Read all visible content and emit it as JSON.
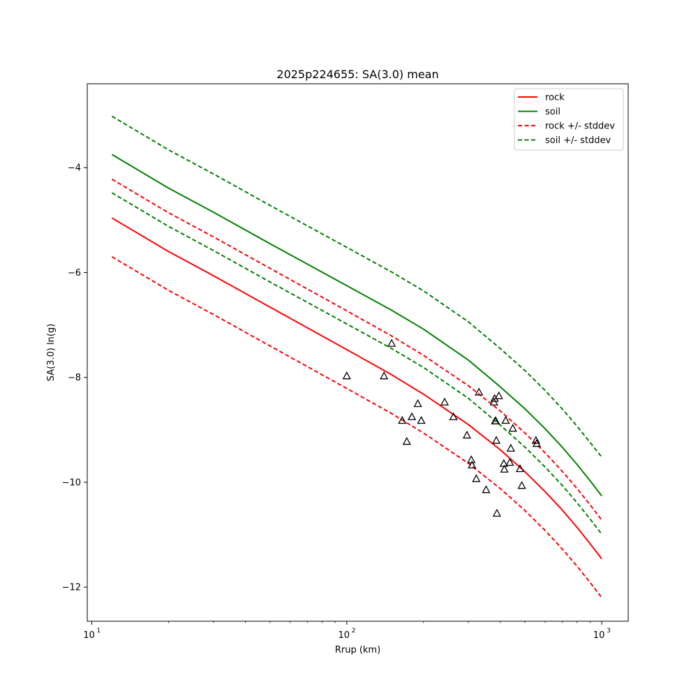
{
  "chart_data": {
    "type": "line",
    "title": "2025p224655: SA(3.0) mean",
    "xlabel": "Rrup (km)",
    "ylabel": "SA(3.0) ln(g)",
    "xscale": "log",
    "xlim": [
      9.6,
      1270
    ],
    "ylim": [
      -12.65,
      -2.4
    ],
    "x_ticks": [
      {
        "value": 10,
        "label": "10",
        "exp": "1"
      },
      {
        "value": 100,
        "label": "10",
        "exp": "2"
      },
      {
        "value": 1000,
        "label": "10",
        "exp": "3"
      }
    ],
    "y_ticks": [
      {
        "value": -4,
        "label": "−4"
      },
      {
        "value": -6,
        "label": "−6"
      },
      {
        "value": -8,
        "label": "−8"
      },
      {
        "value": -10,
        "label": "−10"
      },
      {
        "value": -12,
        "label": "−12"
      }
    ],
    "grid": false,
    "legend_position": "top-right",
    "series": [
      {
        "name": "rock",
        "color": "#ff0000",
        "dash": "solid",
        "x": [
          12,
          20,
          30,
          50,
          100,
          150,
          200,
          300,
          400,
          500,
          600,
          700,
          800,
          900,
          1000
        ],
        "y": [
          -4.96,
          -5.6,
          -6.06,
          -6.66,
          -7.47,
          -7.95,
          -8.32,
          -8.9,
          -9.38,
          -9.8,
          -10.18,
          -10.53,
          -10.86,
          -11.17,
          -11.46
        ]
      },
      {
        "name": "soil",
        "color": "#008000",
        "dash": "solid",
        "x": [
          12,
          20,
          30,
          50,
          100,
          150,
          200,
          300,
          400,
          500,
          600,
          700,
          800,
          900,
          1000
        ],
        "y": [
          -3.75,
          -4.39,
          -4.85,
          -5.45,
          -6.25,
          -6.72,
          -7.08,
          -7.67,
          -8.18,
          -8.6,
          -8.98,
          -9.33,
          -9.66,
          -9.97,
          -10.26
        ]
      },
      {
        "name": "rock +/- stddev",
        "color": "#ff0000",
        "dash": "dashed",
        "x": [
          12,
          20,
          30,
          50,
          100,
          150,
          200,
          300,
          400,
          500,
          600,
          700,
          800,
          900,
          1000
        ],
        "y": [
          -4.22,
          -4.86,
          -5.32,
          -5.92,
          -6.73,
          -7.21,
          -7.58,
          -8.16,
          -8.64,
          -9.06,
          -9.44,
          -9.79,
          -10.12,
          -10.43,
          -10.72
        ]
      },
      {
        "name": "",
        "color": "#ff0000",
        "dash": "dashed",
        "x": [
          12,
          20,
          30,
          50,
          100,
          150,
          200,
          300,
          400,
          500,
          600,
          700,
          800,
          900,
          1000
        ],
        "y": [
          -5.7,
          -6.34,
          -6.8,
          -7.4,
          -8.21,
          -8.69,
          -9.06,
          -9.64,
          -10.12,
          -10.54,
          -10.92,
          -11.27,
          -11.6,
          -11.91,
          -12.2
        ]
      },
      {
        "name": "soil +/- stddev",
        "color": "#008000",
        "dash": "dashed",
        "x": [
          12,
          20,
          30,
          50,
          100,
          150,
          200,
          300,
          400,
          500,
          600,
          700,
          800,
          900,
          1000
        ],
        "y": [
          -3.02,
          -3.66,
          -4.12,
          -4.72,
          -5.52,
          -5.99,
          -6.35,
          -6.94,
          -7.45,
          -7.87,
          -8.25,
          -8.6,
          -8.93,
          -9.24,
          -9.52
        ]
      },
      {
        "name": "",
        "color": "#008000",
        "dash": "dashed",
        "x": [
          12,
          20,
          30,
          50,
          100,
          150,
          200,
          300,
          400,
          500,
          600,
          700,
          800,
          900,
          1000
        ],
        "y": [
          -4.48,
          -5.12,
          -5.58,
          -6.18,
          -6.98,
          -7.45,
          -7.81,
          -8.4,
          -8.91,
          -9.33,
          -9.71,
          -10.06,
          -10.39,
          -10.7,
          -10.99
        ]
      }
    ],
    "observations": {
      "marker": "triangle-open",
      "color": "#000000",
      "points": [
        [
          100,
          -7.97
        ],
        [
          140,
          -7.97
        ],
        [
          150,
          -7.35
        ],
        [
          165,
          -8.82
        ],
        [
          172,
          -9.22
        ],
        [
          180,
          -8.75
        ],
        [
          190,
          -8.5
        ],
        [
          196,
          -8.82
        ],
        [
          242,
          -8.47
        ],
        [
          262,
          -8.75
        ],
        [
          296,
          -9.1
        ],
        [
          308,
          -9.57
        ],
        [
          310,
          -9.67
        ],
        [
          322,
          -9.93
        ],
        [
          330,
          -8.28
        ],
        [
          352,
          -10.14
        ],
        [
          378,
          -8.47
        ],
        [
          380,
          -8.4
        ],
        [
          382,
          -8.83
        ],
        [
          384,
          -8.83
        ],
        [
          386,
          -9.2
        ],
        [
          388,
          -10.59
        ],
        [
          395,
          -8.35
        ],
        [
          413,
          -9.64
        ],
        [
          415,
          -9.75
        ],
        [
          420,
          -8.82
        ],
        [
          436,
          -9.62
        ],
        [
          440,
          -9.35
        ],
        [
          448,
          -8.97
        ],
        [
          478,
          -9.74
        ],
        [
          486,
          -10.06
        ],
        [
          552,
          -9.2
        ],
        [
          556,
          -9.26
        ]
      ]
    }
  }
}
